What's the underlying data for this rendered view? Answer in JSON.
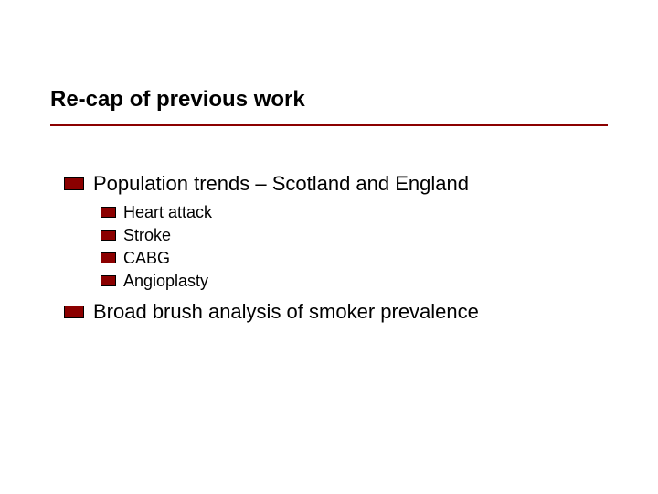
{
  "slide": {
    "title": "Re-cap of previous work",
    "title_color": "#000000",
    "title_fontsize": 24,
    "rule_color": "#8b0000",
    "bullet_fill": "#8b0000",
    "bullet_border": "#000000",
    "background_color": "#ffffff",
    "main_fontsize": 22,
    "sub_fontsize": 18,
    "items": [
      {
        "text": "Population trends – Scotland and England",
        "subitems": [
          {
            "text": "Heart attack"
          },
          {
            "text": "Stroke"
          },
          {
            "text": "CABG"
          },
          {
            "text": "Angioplasty"
          }
        ]
      },
      {
        "text": "Broad brush analysis of smoker prevalence",
        "subitems": []
      }
    ]
  }
}
